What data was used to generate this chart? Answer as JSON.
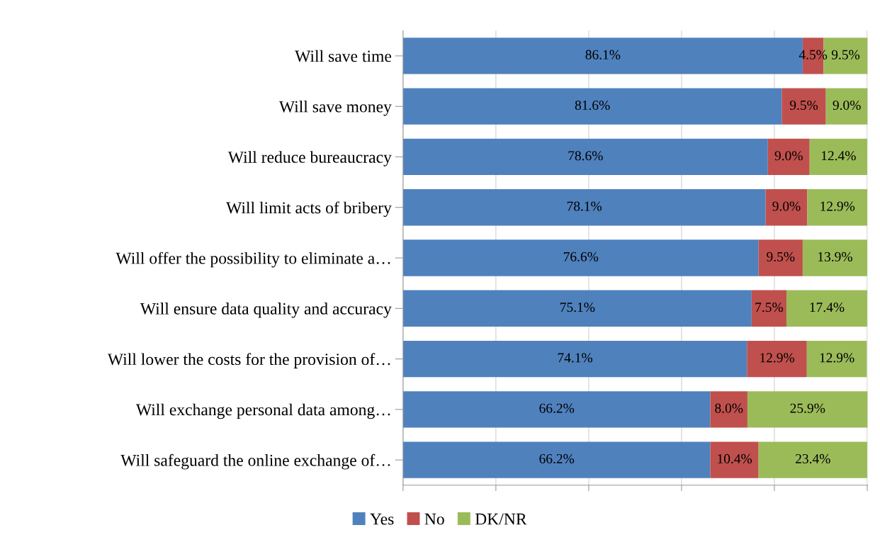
{
  "chart_data": {
    "type": "bar",
    "orientation": "horizontal",
    "stacked": true,
    "categories": [
      "Will save time",
      "Will save money",
      "Will reduce bureaucracy",
      "Will limit acts of bribery",
      "Will offer the possibility to eliminate a…",
      "Will ensure data quality and accuracy",
      "Will lower the costs for the provision of…",
      "Will exchange personal data among…",
      "Will safeguard the online exchange of…"
    ],
    "series": [
      {
        "name": "Yes",
        "color": "#4f81bd",
        "values": [
          86.1,
          81.6,
          78.6,
          78.1,
          76.6,
          75.1,
          74.1,
          66.2,
          66.2
        ],
        "value_labels": [
          "86.1%",
          "81.6%",
          "78.6%",
          "78.1%",
          "76.6%",
          "75.1%",
          "74.1%",
          "66.2%",
          "66.2%"
        ]
      },
      {
        "name": "No",
        "color": "#c0504d",
        "values": [
          4.5,
          9.5,
          9.0,
          9.0,
          9.5,
          7.5,
          12.9,
          8.0,
          10.4
        ],
        "value_labels": [
          "4.5%",
          "9.5%",
          "9.0%",
          "9.0%",
          "9.5%",
          "7.5%",
          "12.9%",
          "8.0%",
          "10.4%"
        ]
      },
      {
        "name": "DK/NR",
        "color": "#9bbb59",
        "values": [
          9.5,
          9.0,
          12.4,
          12.9,
          13.9,
          17.4,
          12.9,
          25.9,
          23.4
        ],
        "value_labels": [
          "9.5%",
          "9.0%",
          "12.4%",
          "12.9%",
          "13.9%",
          "17.4%",
          "12.9%",
          "25.9%",
          "23.4%"
        ]
      }
    ],
    "tick_labels": "y",
    "grid": "x",
    "legend": "bottom"
  }
}
